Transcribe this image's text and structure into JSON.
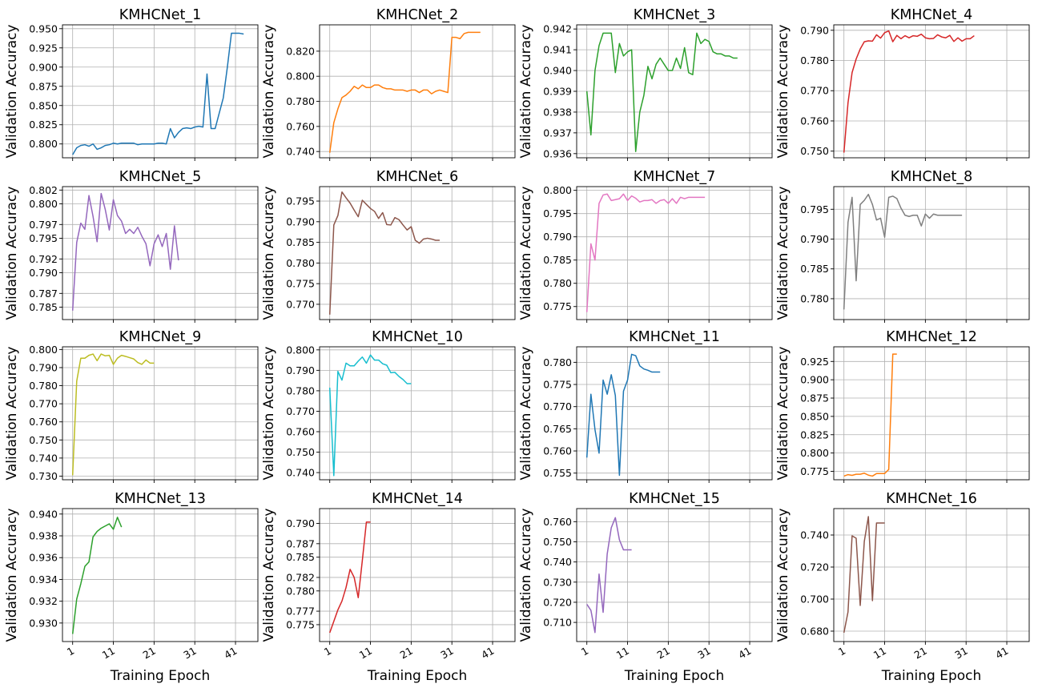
{
  "chart_data": [
    {
      "type": "line",
      "title": "KMHCNet_1",
      "ylabel": "Validation Accuracy",
      "xlabel": "",
      "color": "#1f77b4",
      "ylim": [
        0.782,
        0.955
      ],
      "yticks": [
        "0.800",
        "0.825",
        "0.850",
        "0.875",
        "0.900",
        "0.925",
        "0.950"
      ],
      "xticks": [
        "1",
        "11",
        "21",
        "31",
        "41"
      ],
      "x": [
        1,
        2,
        3,
        4,
        5,
        6,
        7,
        8,
        9,
        10,
        11,
        12,
        13,
        14,
        15,
        16,
        17,
        18,
        19,
        20,
        21,
        22,
        23,
        24,
        25,
        26,
        27,
        28,
        29,
        30,
        31,
        32,
        33,
        34,
        35,
        36,
        37,
        38,
        39,
        40,
        41,
        42,
        43
      ],
      "values": [
        0.786,
        0.795,
        0.798,
        0.799,
        0.797,
        0.8,
        0.793,
        0.795,
        0.798,
        0.799,
        0.801,
        0.8,
        0.801,
        0.801,
        0.801,
        0.801,
        0.799,
        0.8,
        0.8,
        0.8,
        0.8,
        0.801,
        0.801,
        0.8,
        0.82,
        0.808,
        0.815,
        0.82,
        0.821,
        0.82,
        0.822,
        0.823,
        0.822,
        0.891,
        0.82,
        0.82,
        0.84,
        0.86,
        0.9,
        0.944,
        0.944,
        0.944,
        0.943
      ]
    },
    {
      "type": "line",
      "title": "KMHCNet_2",
      "ylabel": "Validation Accuracy",
      "xlabel": "",
      "color": "#ff7f0e",
      "ylim": [
        0.735,
        0.841
      ],
      "yticks": [
        "0.740",
        "0.760",
        "0.780",
        "0.800",
        "0.820"
      ],
      "xticks": [
        "1",
        "11",
        "21",
        "31",
        "41"
      ],
      "x": [
        1,
        2,
        3,
        4,
        5,
        6,
        7,
        8,
        9,
        10,
        11,
        12,
        13,
        14,
        15,
        16,
        17,
        18,
        19,
        20,
        21,
        22,
        23,
        24,
        25,
        26,
        27,
        28,
        29,
        30,
        31,
        32,
        33,
        34,
        35,
        36,
        37,
        38
      ],
      "values": [
        0.739,
        0.763,
        0.774,
        0.783,
        0.785,
        0.788,
        0.792,
        0.79,
        0.793,
        0.791,
        0.791,
        0.793,
        0.793,
        0.791,
        0.79,
        0.79,
        0.789,
        0.789,
        0.789,
        0.788,
        0.789,
        0.789,
        0.787,
        0.789,
        0.789,
        0.786,
        0.788,
        0.789,
        0.788,
        0.787,
        0.831,
        0.831,
        0.83,
        0.834,
        0.835,
        0.835,
        0.835,
        0.835
      ]
    },
    {
      "type": "line",
      "title": "KMHCNet_3",
      "ylabel": "Validation Accuracy",
      "xlabel": "",
      "color": "#2ca02c",
      "ylim": [
        0.9358,
        0.9422
      ],
      "yticks": [
        "0.936",
        "0.937",
        "0.938",
        "0.939",
        "0.940",
        "0.941",
        "0.942"
      ],
      "xticks": [
        "1",
        "11",
        "21",
        "31",
        "41"
      ],
      "x": [
        1,
        2,
        3,
        4,
        5,
        6,
        7,
        8,
        9,
        10,
        11,
        12,
        13,
        14,
        15,
        16,
        17,
        18,
        19,
        20,
        21,
        22,
        23,
        24,
        25,
        26,
        27,
        28,
        29,
        30,
        31,
        32,
        33,
        34,
        35,
        36,
        37,
        38
      ],
      "values": [
        0.939,
        0.9369,
        0.94,
        0.9412,
        0.9418,
        0.9418,
        0.9418,
        0.9399,
        0.9413,
        0.9407,
        0.9409,
        0.941,
        0.9361,
        0.938,
        0.9388,
        0.9402,
        0.9396,
        0.9403,
        0.9406,
        0.9403,
        0.94,
        0.94,
        0.9406,
        0.9401,
        0.9411,
        0.9399,
        0.9398,
        0.9418,
        0.9413,
        0.9415,
        0.9414,
        0.9409,
        0.9408,
        0.9408,
        0.9407,
        0.9407,
        0.9406,
        0.9406
      ]
    },
    {
      "type": "line",
      "title": "KMHCNet_4",
      "ylabel": "Validation Accuracy",
      "xlabel": "",
      "color": "#d62728",
      "ylim": [
        0.7478,
        0.7918
      ],
      "yticks": [
        "0.750",
        "0.760",
        "0.770",
        "0.780",
        "0.790"
      ],
      "xticks": [
        "1",
        "11",
        "21",
        "31",
        "41"
      ],
      "x": [
        1,
        2,
        3,
        4,
        5,
        6,
        7,
        8,
        9,
        10,
        11,
        12,
        13,
        14,
        15,
        16,
        17,
        18,
        19,
        20,
        21,
        22,
        23,
        24,
        25,
        26,
        27,
        28,
        29,
        30,
        31,
        32,
        33
      ],
      "values": [
        0.7495,
        0.766,
        0.776,
        0.7805,
        0.7838,
        0.7862,
        0.7865,
        0.7864,
        0.7885,
        0.7874,
        0.7892,
        0.7898,
        0.7862,
        0.7883,
        0.7872,
        0.7882,
        0.7875,
        0.7882,
        0.788,
        0.7887,
        0.7875,
        0.7872,
        0.7873,
        0.7885,
        0.7878,
        0.7875,
        0.7883,
        0.7863,
        0.7875,
        0.7864,
        0.7872,
        0.7872,
        0.7882
      ]
    },
    {
      "type": "line",
      "title": "KMHCNet_5",
      "ylabel": "Validation Accuracy",
      "xlabel": "",
      "color": "#9467bd",
      "ylim": [
        0.7832,
        0.8025
      ],
      "yticks": [
        "0.785",
        "0.787",
        "0.790",
        "0.792",
        "0.795",
        "0.797",
        "0.800",
        "0.802"
      ],
      "xticks": [
        "1",
        "11",
        "21",
        "31",
        "41"
      ],
      "x": [
        1,
        2,
        3,
        4,
        5,
        6,
        7,
        8,
        9,
        10,
        11,
        12,
        13,
        14,
        15,
        16,
        17,
        18,
        19,
        20,
        21,
        22,
        23,
        24,
        25,
        26,
        27
      ],
      "values": [
        0.7845,
        0.7944,
        0.7972,
        0.7963,
        0.8012,
        0.7982,
        0.7945,
        0.8015,
        0.7992,
        0.7962,
        0.8006,
        0.7983,
        0.7975,
        0.7957,
        0.7963,
        0.7957,
        0.7966,
        0.7953,
        0.7942,
        0.791,
        0.7942,
        0.7955,
        0.7938,
        0.7957,
        0.7905,
        0.7968,
        0.7918
      ]
    },
    {
      "type": "line",
      "title": "KMHCNet_6",
      "ylabel": "Validation Accuracy",
      "xlabel": "",
      "color": "#8c564b",
      "ylim": [
        0.7663,
        0.7985
      ],
      "yticks": [
        "0.770",
        "0.775",
        "0.780",
        "0.785",
        "0.790",
        "0.795"
      ],
      "xticks": [
        "1",
        "11",
        "21",
        "31",
        "41"
      ],
      "x": [
        1,
        2,
        3,
        4,
        5,
        6,
        7,
        8,
        9,
        10,
        11,
        12,
        13,
        14,
        15,
        16,
        17,
        18,
        19,
        20,
        21,
        22,
        23,
        24,
        25,
        26,
        27,
        28
      ],
      "values": [
        0.7675,
        0.7892,
        0.7915,
        0.7972,
        0.7958,
        0.7945,
        0.7928,
        0.7912,
        0.7952,
        0.7942,
        0.7932,
        0.7925,
        0.7908,
        0.7922,
        0.7893,
        0.7892,
        0.791,
        0.7905,
        0.7892,
        0.788,
        0.7888,
        0.7855,
        0.7848,
        0.7858,
        0.786,
        0.7858,
        0.7855,
        0.7855
      ]
    },
    {
      "type": "line",
      "title": "KMHCNet_7",
      "ylabel": "Validation Accuracy",
      "xlabel": "",
      "color": "#e377c2",
      "ylim": [
        0.7722,
        0.8008
      ],
      "yticks": [
        "0.775",
        "0.780",
        "0.785",
        "0.790",
        "0.795",
        "0.800"
      ],
      "xticks": [
        "1",
        "11",
        "21",
        "31",
        "41"
      ],
      "x": [
        1,
        2,
        3,
        4,
        5,
        6,
        7,
        8,
        9,
        10,
        11,
        12,
        13,
        14,
        15,
        16,
        17,
        18,
        19,
        20,
        21,
        22,
        23,
        24,
        25,
        26,
        27,
        28,
        29,
        30
      ],
      "values": [
        0.7738,
        0.7885,
        0.785,
        0.7972,
        0.799,
        0.7992,
        0.7978,
        0.798,
        0.7982,
        0.7992,
        0.7978,
        0.7988,
        0.7983,
        0.7975,
        0.7978,
        0.7978,
        0.798,
        0.7972,
        0.7978,
        0.798,
        0.7972,
        0.7982,
        0.7972,
        0.7985,
        0.7982,
        0.7985,
        0.7985,
        0.7985,
        0.7985,
        0.7985
      ]
    },
    {
      "type": "line",
      "title": "KMHCNet_8",
      "ylabel": "Validation Accuracy",
      "xlabel": "",
      "color": "#7f7f7f",
      "ylim": [
        0.7765,
        0.7988
      ],
      "yticks": [
        "0.780",
        "0.785",
        "0.790",
        "0.795"
      ],
      "xticks": [
        "1",
        "11",
        "21",
        "31",
        "41"
      ],
      "x": [
        1,
        2,
        3,
        4,
        5,
        6,
        7,
        8,
        9,
        10,
        11,
        12,
        13,
        14,
        15,
        16,
        17,
        18,
        19,
        20,
        21,
        22,
        23,
        24,
        25,
        26,
        27,
        28,
        29,
        30
      ],
      "values": [
        0.7782,
        0.7928,
        0.797,
        0.783,
        0.7958,
        0.7965,
        0.7975,
        0.7958,
        0.7932,
        0.7935,
        0.7903,
        0.797,
        0.7972,
        0.7968,
        0.7952,
        0.794,
        0.7938,
        0.794,
        0.794,
        0.7922,
        0.7942,
        0.7935,
        0.7942,
        0.794,
        0.794,
        0.794,
        0.794,
        0.794,
        0.794,
        0.794
      ]
    },
    {
      "type": "line",
      "title": "KMHCNet_9",
      "ylabel": "Validation Accuracy",
      "xlabel": "",
      "color": "#bcbd22",
      "ylim": [
        0.728,
        0.8015
      ],
      "yticks": [
        "0.730",
        "0.740",
        "0.750",
        "0.760",
        "0.770",
        "0.780",
        "0.790",
        "0.800"
      ],
      "xticks": [
        "1",
        "11",
        "21",
        "31",
        "41"
      ],
      "x": [
        1,
        2,
        3,
        4,
        5,
        6,
        7,
        8,
        9,
        10,
        11,
        12,
        13,
        14,
        15,
        16,
        17,
        18,
        19,
        20,
        21
      ],
      "values": [
        0.7305,
        0.7825,
        0.7952,
        0.7952,
        0.7968,
        0.7975,
        0.7938,
        0.7975,
        0.7965,
        0.7968,
        0.7918,
        0.7952,
        0.7968,
        0.7962,
        0.7955,
        0.7948,
        0.7928,
        0.7918,
        0.7942,
        0.7925,
        0.7925
      ]
    },
    {
      "type": "line",
      "title": "KMHCNet_10",
      "ylabel": "Validation Accuracy",
      "xlabel": "",
      "color": "#17becf",
      "ylim": [
        0.7365,
        0.8015
      ],
      "yticks": [
        "0.740",
        "0.750",
        "0.760",
        "0.770",
        "0.780",
        "0.790",
        "0.800"
      ],
      "xticks": [
        "1",
        "11",
        "21",
        "31",
        "41"
      ],
      "x": [
        1,
        2,
        3,
        4,
        5,
        6,
        7,
        8,
        9,
        10,
        11,
        12,
        13,
        14,
        15,
        16,
        17,
        18,
        19,
        20,
        21
      ],
      "values": [
        0.7815,
        0.7385,
        0.7895,
        0.7852,
        0.7935,
        0.7922,
        0.7922,
        0.7945,
        0.7965,
        0.7935,
        0.7975,
        0.795,
        0.795,
        0.7932,
        0.7925,
        0.7888,
        0.789,
        0.787,
        0.7855,
        0.7835,
        0.7835
      ]
    },
    {
      "type": "line",
      "title": "KMHCNet_11",
      "ylabel": "Validation Accuracy",
      "xlabel": "",
      "color": "#1f77b4",
      "ylim": [
        0.7535,
        0.7835
      ],
      "yticks": [
        "0.755",
        "0.760",
        "0.765",
        "0.770",
        "0.775",
        "0.780"
      ],
      "xticks": [
        "1",
        "11",
        "21",
        "31",
        "41"
      ],
      "x": [
        1,
        2,
        3,
        4,
        5,
        6,
        7,
        8,
        9,
        10,
        11,
        12,
        13,
        14,
        15,
        16,
        17,
        18,
        19
      ],
      "values": [
        0.7585,
        0.7728,
        0.7648,
        0.7595,
        0.776,
        0.7728,
        0.7772,
        0.7725,
        0.7545,
        0.7735,
        0.776,
        0.7818,
        0.7815,
        0.7792,
        0.7785,
        0.7782,
        0.7778,
        0.7778,
        0.7778
      ]
    },
    {
      "type": "line",
      "title": "KMHCNet_12",
      "ylabel": "Validation Accuracy",
      "xlabel": "",
      "color": "#ff7f0e",
      "ylim": [
        0.7635,
        0.945
      ],
      "yticks": [
        "0.775",
        "0.800",
        "0.825",
        "0.850",
        "0.875",
        "0.900",
        "0.925"
      ],
      "xticks": [
        "1",
        "11",
        "21",
        "31",
        "41"
      ],
      "x": [
        1,
        2,
        3,
        4,
        5,
        6,
        7,
        8,
        9,
        10,
        11,
        12,
        13,
        14
      ],
      "values": [
        0.7685,
        0.7705,
        0.7695,
        0.771,
        0.771,
        0.7725,
        0.7698,
        0.7685,
        0.772,
        0.772,
        0.772,
        0.7775,
        0.935,
        0.935
      ]
    },
    {
      "type": "line",
      "title": "KMHCNet_13",
      "ylabel": "Validation Accuracy",
      "xlabel": "",
      "color": "#2ca02c",
      "ylim": [
        0.9283,
        0.9405
      ],
      "yticks": [
        "0.930",
        "0.932",
        "0.934",
        "0.936",
        "0.938",
        "0.940"
      ],
      "xticks": [
        "1",
        "11",
        "21",
        "31",
        "41"
      ],
      "x": [
        1,
        2,
        3,
        4,
        5,
        6,
        7,
        8,
        9,
        10,
        11,
        12,
        13
      ],
      "values": [
        0.929,
        0.9322,
        0.9336,
        0.9352,
        0.9356,
        0.9379,
        0.9384,
        0.9387,
        0.9389,
        0.9391,
        0.9386,
        0.9397,
        0.9388
      ]
    },
    {
      "type": "line",
      "title": "KMHCNet_14",
      "ylabel": "Validation Accuracy",
      "xlabel": "",
      "color": "#d62728",
      "ylim": [
        0.7725,
        0.7922
      ],
      "yticks": [
        "0.775",
        "0.777",
        "0.780",
        "0.782",
        "0.785",
        "0.787",
        "0.790"
      ],
      "xticks": [
        "1",
        "11",
        "21",
        "31",
        "41"
      ],
      "x": [
        1,
        2,
        3,
        4,
        5,
        6,
        7,
        8,
        9,
        10,
        11
      ],
      "values": [
        0.7738,
        0.7755,
        0.7772,
        0.7785,
        0.7805,
        0.7832,
        0.782,
        0.779,
        0.7845,
        0.7902,
        0.7902
      ]
    },
    {
      "type": "line",
      "title": "KMHCNet_15",
      "ylabel": "Validation Accuracy",
      "xlabel": "",
      "color": "#9467bd",
      "ylim": [
        0.7005,
        0.7665
      ],
      "yticks": [
        "0.710",
        "0.720",
        "0.730",
        "0.740",
        "0.750",
        "0.760"
      ],
      "xticks": [
        "1",
        "11",
        "21",
        "31",
        "41"
      ],
      "x": [
        1,
        2,
        3,
        4,
        5,
        6,
        7,
        8,
        9,
        10,
        11,
        12
      ],
      "values": [
        0.719,
        0.716,
        0.705,
        0.734,
        0.715,
        0.744,
        0.757,
        0.762,
        0.751,
        0.746,
        0.746,
        0.746
      ]
    },
    {
      "type": "line",
      "title": "KMHCNet_16",
      "ylabel": "Validation Accuracy",
      "xlabel": "",
      "color": "#8c564b",
      "ylim": [
        0.6735,
        0.7565
      ],
      "yticks": [
        "0.680",
        "0.700",
        "0.720",
        "0.740"
      ],
      "xticks": [
        "1",
        "11",
        "21",
        "31",
        "41"
      ],
      "x": [
        1,
        2,
        3,
        4,
        5,
        6,
        7,
        8,
        9,
        10,
        11
      ],
      "values": [
        0.679,
        0.692,
        0.7395,
        0.738,
        0.696,
        0.736,
        0.7515,
        0.699,
        0.7475,
        0.7475,
        0.7475
      ]
    }
  ],
  "xlabel_bottom": "Training Epoch",
  "xlim": [
    -1.5,
    46.5
  ]
}
